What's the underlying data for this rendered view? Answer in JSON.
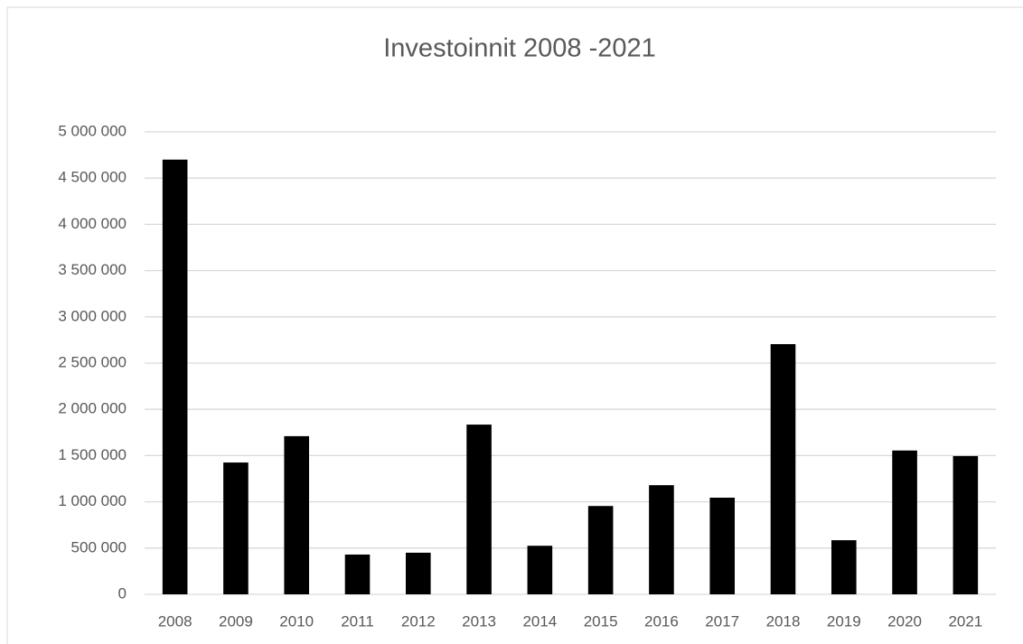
{
  "chart_data": {
    "type": "bar",
    "title": "Investoinnit 2008 -2021",
    "categories": [
      "2008",
      "2009",
      "2010",
      "2011",
      "2012",
      "2013",
      "2014",
      "2015",
      "2016",
      "2017",
      "2018",
      "2019",
      "2020",
      "2021"
    ],
    "values": [
      4700000,
      1425000,
      1710000,
      430000,
      450000,
      1835000,
      525000,
      955000,
      1180000,
      1045000,
      2705000,
      585000,
      1555000,
      1495000
    ],
    "color": "#000000",
    "ylim": [
      0,
      5000000
    ],
    "yticks": [
      0,
      {
        "value": 500000,
        "label": "500 000"
      },
      {
        "value": 1000000,
        "label": "1 000 000"
      },
      {
        "value": 1500000,
        "label": "1 500 000"
      },
      {
        "value": 2000000,
        "label": "2 000 000"
      },
      {
        "value": 2500000,
        "label": "2 500 000"
      },
      {
        "value": 3000000,
        "label": "3 000 000"
      },
      {
        "value": 3500000,
        "label": "3 500 000"
      },
      {
        "value": 4000000,
        "label": "4 000 000"
      },
      {
        "value": 4500000,
        "label": "4 500 000"
      },
      {
        "value": 5000000,
        "label": "5 000 000"
      }
    ],
    "grid": true
  }
}
